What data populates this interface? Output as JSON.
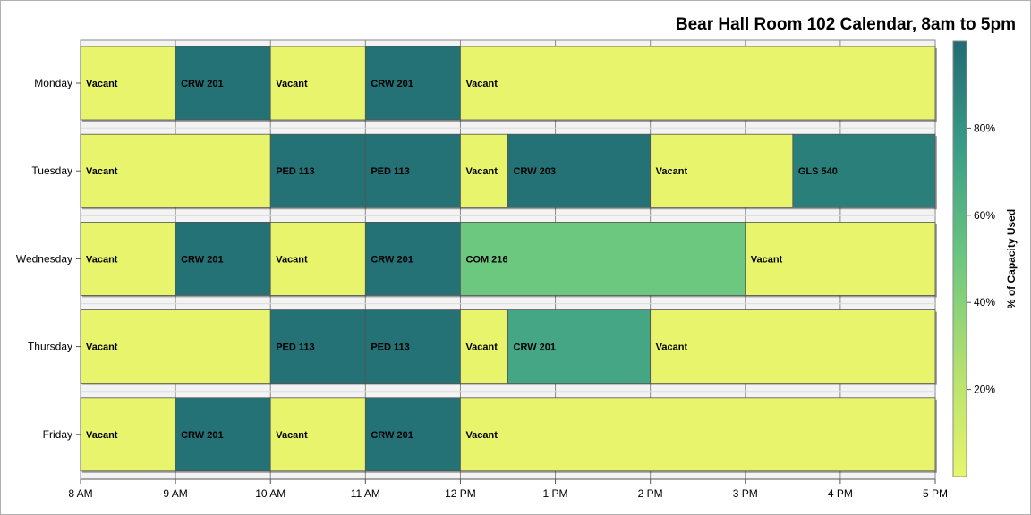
{
  "chart_data": {
    "type": "bar",
    "orientation": "horizontal-gantt",
    "title": "Bear Hall Room 102 Calendar, 8am to 5pm",
    "x_ticks": [
      "8 AM",
      "9 AM",
      "10 AM",
      "11 AM",
      "12 PM",
      "1 PM",
      "2 PM",
      "3 PM",
      "4 PM",
      "5 PM"
    ],
    "xlim_hours": [
      8,
      17
    ],
    "categories": [
      "Monday",
      "Tuesday",
      "Wednesday",
      "Thursday",
      "Friday"
    ],
    "colorbar": {
      "label": "% of Capacity Used",
      "range": [
        0,
        100
      ],
      "ticks": [
        "20%",
        "40%",
        "60%",
        "80%"
      ],
      "tick_values": [
        20,
        40,
        60,
        80
      ],
      "colors": [
        "#e8f56c",
        "#b3e06f",
        "#6cc77f",
        "#3a9e86",
        "#216b74"
      ]
    },
    "grid": true,
    "series": [
      {
        "day": "Monday",
        "blocks": [
          {
            "label": "Vacant",
            "start": 8,
            "end": 9,
            "capacity": 0
          },
          {
            "label": "CRW 201",
            "start": 9,
            "end": 10,
            "capacity": 97
          },
          {
            "label": "Vacant",
            "start": 10,
            "end": 11,
            "capacity": 0
          },
          {
            "label": "CRW 201",
            "start": 11,
            "end": 12,
            "capacity": 97
          },
          {
            "label": "Vacant",
            "start": 12,
            "end": 17,
            "capacity": 0
          }
        ]
      },
      {
        "day": "Tuesday",
        "blocks": [
          {
            "label": "Vacant",
            "start": 8,
            "end": 10,
            "capacity": 0
          },
          {
            "label": "PED 113",
            "start": 10,
            "end": 11,
            "capacity": 97
          },
          {
            "label": "PED 113",
            "start": 11,
            "end": 12,
            "capacity": 97
          },
          {
            "label": "Vacant",
            "start": 12,
            "end": 12.5,
            "capacity": 0
          },
          {
            "label": "CRW 203",
            "start": 12.5,
            "end": 14,
            "capacity": 97
          },
          {
            "label": "Vacant",
            "start": 14,
            "end": 15.5,
            "capacity": 0
          },
          {
            "label": "GLS 540",
            "start": 15.5,
            "end": 17,
            "capacity": 90
          }
        ]
      },
      {
        "day": "Wednesday",
        "blocks": [
          {
            "label": "Vacant",
            "start": 8,
            "end": 9,
            "capacity": 0
          },
          {
            "label": "CRW 201",
            "start": 9,
            "end": 10,
            "capacity": 97
          },
          {
            "label": "Vacant",
            "start": 10,
            "end": 11,
            "capacity": 0
          },
          {
            "label": "CRW 201",
            "start": 11,
            "end": 12,
            "capacity": 97
          },
          {
            "label": "COM 216",
            "start": 12,
            "end": 15,
            "capacity": 50
          },
          {
            "label": "Vacant",
            "start": 15,
            "end": 17,
            "capacity": 0
          }
        ]
      },
      {
        "day": "Thursday",
        "blocks": [
          {
            "label": "Vacant",
            "start": 8,
            "end": 10,
            "capacity": 0
          },
          {
            "label": "PED 113",
            "start": 10,
            "end": 11,
            "capacity": 97
          },
          {
            "label": "PED 113",
            "start": 11,
            "end": 12,
            "capacity": 97
          },
          {
            "label": "Vacant",
            "start": 12,
            "end": 12.5,
            "capacity": 0
          },
          {
            "label": "CRW 201",
            "start": 12.5,
            "end": 14,
            "capacity": 70
          },
          {
            "label": "Vacant",
            "start": 14,
            "end": 17,
            "capacity": 0
          }
        ]
      },
      {
        "day": "Friday",
        "blocks": [
          {
            "label": "Vacant",
            "start": 8,
            "end": 9,
            "capacity": 0
          },
          {
            "label": "CRW 201",
            "start": 9,
            "end": 10,
            "capacity": 97
          },
          {
            "label": "Vacant",
            "start": 10,
            "end": 11,
            "capacity": 0
          },
          {
            "label": "CRW 201",
            "start": 11,
            "end": 12,
            "capacity": 97
          },
          {
            "label": "Vacant",
            "start": 12,
            "end": 17,
            "capacity": 0
          }
        ]
      }
    ]
  }
}
